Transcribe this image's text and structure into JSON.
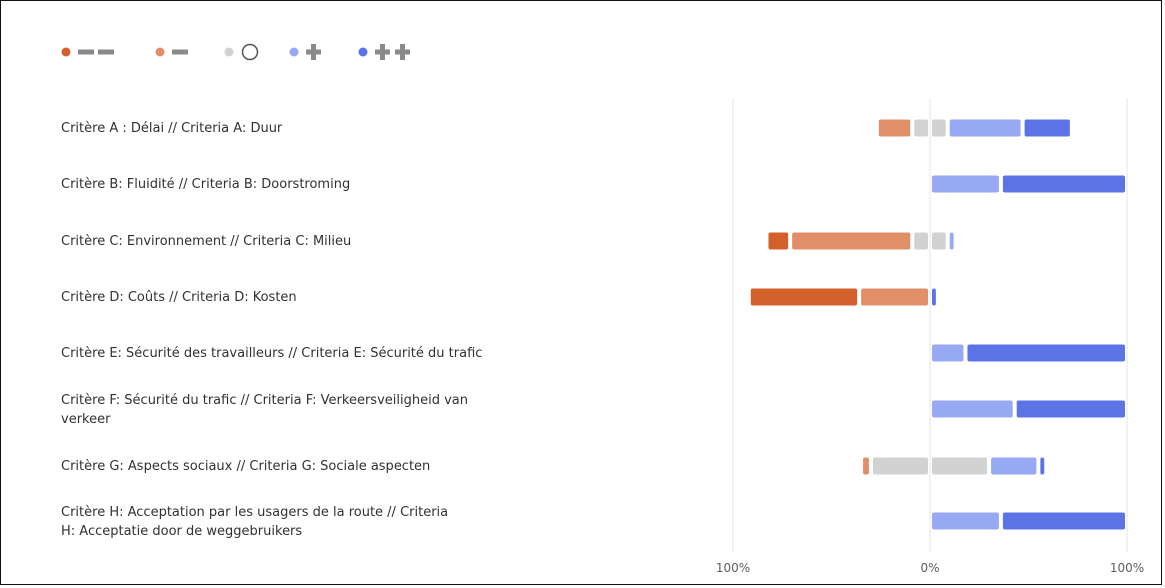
{
  "chart_data": {
    "type": "bar",
    "orientation": "horizontal",
    "stacked": "diverging",
    "categories": [
      "Critère A : Délai // Criteria A: Duur",
      "Critère B: Fluidité // Criteria B: Doorstroming",
      "Critère C: Environnement // Criteria C: Milieu",
      "Critère D: Coûts // Criteria D: Kosten",
      "Critère E: Sécurité des travailleurs // Criteria E: Sécurité du trafic",
      "Critère F: Sécurité du trafic // Criteria F: Verkeersveiligheid van verkeer",
      "Critère G: Aspects sociaux // Criteria G: Sociale aspecten",
      "Critère H: Acceptation par les usagers de la route // Criteria H: Acceptatie door de weggebruikers"
    ],
    "series": [
      {
        "key": "very_negative",
        "color": "#d35f2b",
        "values": [
          0,
          0,
          12,
          56,
          0,
          0,
          0,
          0
        ]
      },
      {
        "key": "negative",
        "color": "#e08f68",
        "values": [
          18,
          0,
          62,
          36,
          0,
          0,
          5,
          0
        ]
      },
      {
        "key": "neutral",
        "color": "#d3d2d2",
        "values": [
          18,
          0,
          18,
          0,
          0,
          0,
          60,
          0
        ]
      },
      {
        "key": "positive",
        "color": "#97a9f2",
        "values": [
          38,
          36,
          4,
          0,
          18,
          43,
          25,
          36
        ]
      },
      {
        "key": "very_positive",
        "color": "#5b73e6",
        "values": [
          25,
          64,
          0,
          4,
          82,
          57,
          4,
          64
        ]
      }
    ],
    "xlim": [
      -100,
      100
    ],
    "tick_labels": [
      "100%",
      "0%",
      "100%"
    ],
    "legend_position": "top-left",
    "gridlines": true
  },
  "legend_symbols": [
    "minus-minus-icon",
    "minus-icon",
    "circle-icon",
    "plus-icon",
    "plus-plus-icon"
  ],
  "label_lines": [
    [
      "Critère A : Délai // Criteria A: Duur"
    ],
    [
      "Critère B: Fluidité // Criteria B: Doorstroming"
    ],
    [
      "Critère C: Environnement // Criteria C: Milieu"
    ],
    [
      "Critère D: Coûts // Criteria D: Kosten"
    ],
    [
      "Critère E: Sécurité des travailleurs // Criteria E: Sécurité du trafic"
    ],
    [
      "Critère F: Sécurité du trafic // Criteria F: Verkeersveiligheid van",
      "verkeer"
    ],
    [
      "Critère G: Aspects sociaux // Criteria G: Sociale aspecten"
    ],
    [
      "Critère H: Acceptation par les usagers de la route // Criteria",
      "H: Acceptatie door de weggebruikers"
    ]
  ]
}
